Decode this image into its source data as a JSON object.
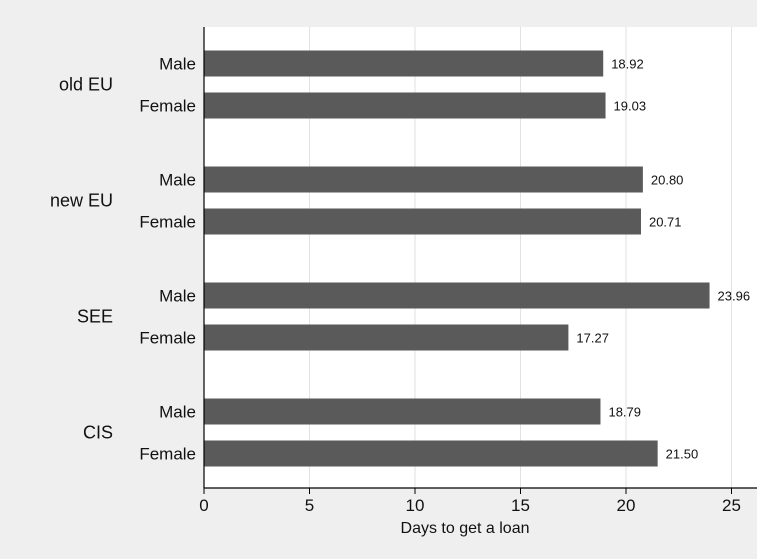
{
  "chart_data": {
    "type": "bar",
    "orientation": "horizontal",
    "xlabel": "Days to get a loan",
    "xlim": [
      0,
      26
    ],
    "x_ticks": [
      0,
      5,
      10,
      15,
      20,
      25
    ],
    "grid": true,
    "bar_color": "#5a5a5a",
    "plot_background": "#ffffff",
    "outer_background": "#efefef",
    "grid_color": "#e2e2e2",
    "groups": [
      {
        "name": "old EU",
        "bars": [
          {
            "label": "Male",
            "value": 18.92,
            "value_label": "18.92"
          },
          {
            "label": "Female",
            "value": 19.03,
            "value_label": "19.03"
          }
        ]
      },
      {
        "name": "new EU",
        "bars": [
          {
            "label": "Male",
            "value": 20.8,
            "value_label": "20.80"
          },
          {
            "label": "Female",
            "value": 20.71,
            "value_label": "20.71"
          }
        ]
      },
      {
        "name": "SEE",
        "bars": [
          {
            "label": "Male",
            "value": 23.96,
            "value_label": "23.96"
          },
          {
            "label": "Female",
            "value": 17.27,
            "value_label": "17.27"
          }
        ]
      },
      {
        "name": "CIS",
        "bars": [
          {
            "label": "Male",
            "value": 18.79,
            "value_label": "18.79"
          },
          {
            "label": "Female",
            "value": 21.5,
            "value_label": "21.50"
          }
        ]
      }
    ]
  }
}
